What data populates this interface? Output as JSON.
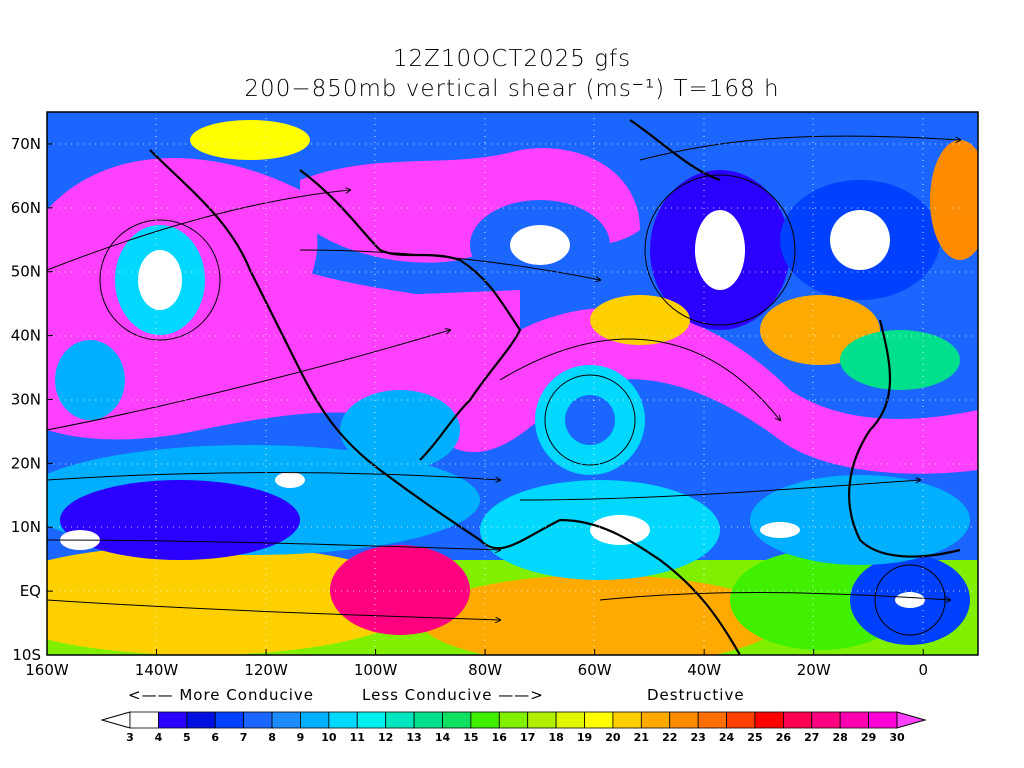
{
  "title": {
    "line1": "12Z10OCT2025 gfs",
    "line2": "200−850mb vertical shear (ms⁻¹) T=168 h"
  },
  "axes": {
    "y_labels": [
      "70N",
      "60N",
      "50N",
      "40N",
      "30N",
      "20N",
      "10N",
      "EQ",
      "10S"
    ],
    "y_values": [
      70,
      60,
      50,
      40,
      30,
      20,
      10,
      0,
      -10
    ],
    "x_labels": [
      "160W",
      "140W",
      "120W",
      "100W",
      "80W",
      "60W",
      "40W",
      "20W",
      "0"
    ],
    "x_values": [
      -160,
      -140,
      -120,
      -100,
      -80,
      -60,
      -40,
      -20,
      0
    ],
    "lon_range": [
      -160,
      10
    ],
    "lat_range": [
      -10,
      75
    ]
  },
  "legend": {
    "more_conducive": "<—— More Conducive",
    "less_conducive": "Less Conducive ——>",
    "destructive": "Destructive",
    "levels": [
      "3",
      "4",
      "5",
      "6",
      "7",
      "8",
      "9",
      "10",
      "11",
      "12",
      "13",
      "14",
      "15",
      "16",
      "17",
      "18",
      "19",
      "20",
      "21",
      "22",
      "23",
      "24",
      "25",
      "26",
      "27",
      "28",
      "29",
      "30"
    ],
    "colors": [
      "#ffffff",
      "#2b00ff",
      "#0010e0",
      "#0040ff",
      "#1a66ff",
      "#1e8cff",
      "#00b0ff",
      "#00d8ff",
      "#00f0f0",
      "#00e6c0",
      "#00e08c",
      "#10e060",
      "#40f000",
      "#80f000",
      "#b0f000",
      "#e0f800",
      "#ffff00",
      "#ffd000",
      "#ffaa00",
      "#ff8c00",
      "#ff6e00",
      "#ff4000",
      "#ff0000",
      "#ff0050",
      "#ff0080",
      "#ff00b0",
      "#ff00d8",
      "#ff40ff"
    ],
    "below_color": "#ffffff",
    "above_color": "#ff40ff"
  }
}
